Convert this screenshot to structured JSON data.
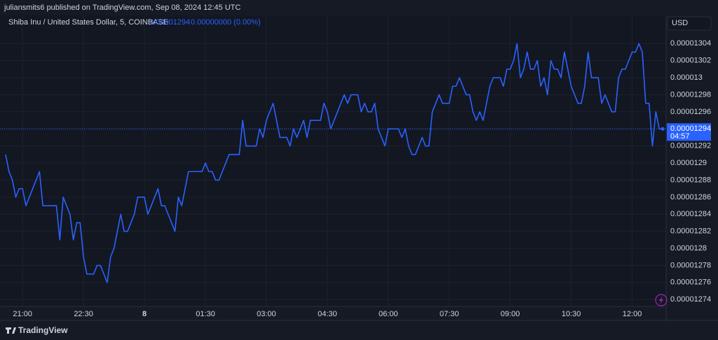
{
  "header": {
    "publisher": "juliansmits6 published on TradingView.com, Sep 08, 2024 12:45 UTC"
  },
  "legend": {
    "symbol": "Shiba Inu / United States Dollar, 5, COINBASE",
    "change": "0.00000000 (0.00%)"
  },
  "currency": "USD",
  "countdown": "04:57",
  "brand": "TradingView",
  "chart_data": {
    "type": "line",
    "color": "#2962ff",
    "grid": true,
    "ylim": [
      1.2732e-05,
      1.3073e-05
    ],
    "yticks": [
      1.274e-05,
      1.276e-05,
      1.278e-05,
      1.28e-05,
      1.282e-05,
      1.284e-05,
      1.286e-05,
      1.288e-05,
      1.29e-05,
      1.292e-05,
      1.294e-05,
      1.296e-05,
      1.298e-05,
      1.3e-05,
      1.302e-05,
      1.304e-05
    ],
    "categories": [
      null,
      null,
      null,
      null,
      null,
      "21:00",
      null,
      null,
      null,
      null,
      null,
      null,
      null,
      null,
      null,
      null,
      null,
      null,
      null,
      null,
      null,
      null,
      null,
      "22:30",
      null,
      null,
      null,
      null,
      null,
      null,
      null,
      null,
      null,
      null,
      null,
      null,
      null,
      null,
      null,
      null,
      null,
      "8",
      null,
      null,
      null,
      null,
      null,
      null,
      null,
      null,
      null,
      null,
      null,
      null,
      null,
      null,
      null,
      null,
      null,
      "01:30",
      null,
      null,
      null,
      null,
      null,
      null,
      null,
      null,
      null,
      null,
      null,
      null,
      null,
      null,
      null,
      null,
      null,
      "03:00",
      null,
      null,
      null,
      null,
      null,
      null,
      null,
      null,
      null,
      null,
      null,
      null,
      null,
      null,
      null,
      null,
      null,
      "04:30",
      null,
      null,
      null,
      null,
      null,
      null,
      null,
      null,
      null,
      null,
      null,
      null,
      null,
      null,
      null,
      null,
      null,
      "06:00",
      null,
      null,
      null,
      null,
      null,
      null,
      null,
      null,
      null,
      null,
      null,
      null,
      null,
      null,
      null,
      null,
      null,
      "07:30",
      null,
      null,
      null,
      null,
      null,
      null,
      null,
      null,
      null,
      null,
      null,
      null,
      null,
      null,
      null,
      null,
      null,
      "09:00",
      null,
      null,
      null,
      null,
      null,
      null,
      null,
      null,
      null,
      null,
      null,
      null,
      null,
      null,
      null,
      null,
      null,
      "10:30",
      null,
      null,
      null,
      null,
      null,
      null,
      null,
      null,
      null,
      null,
      null,
      null,
      null,
      null,
      null,
      null,
      null,
      "12:00",
      null,
      null,
      null,
      null,
      null,
      null,
      null,
      null,
      null
    ],
    "values": [
      1.291e-05,
      1.289e-05,
      1.288e-05,
      1.286e-05,
      1.287e-05,
      1.287e-05,
      1.285e-05,
      1.286e-05,
      1.287e-05,
      1.288e-05,
      1.289e-05,
      1.285e-05,
      1.285e-05,
      1.285e-05,
      1.285e-05,
      1.285e-05,
      1.281e-05,
      1.286e-05,
      1.285e-05,
      1.284e-05,
      1.281e-05,
      1.283e-05,
      1.283e-05,
      1.279e-05,
      1.277e-05,
      1.277e-05,
      1.277e-05,
      1.278e-05,
      1.278e-05,
      1.277e-05,
      1.276e-05,
      1.279e-05,
      1.28e-05,
      1.282e-05,
      1.284e-05,
      1.282e-05,
      1.282e-05,
      1.283e-05,
      1.284e-05,
      1.286e-05,
      1.286e-05,
      1.286e-05,
      1.284e-05,
      1.285e-05,
      1.286e-05,
      1.287e-05,
      1.285e-05,
      1.285e-05,
      1.284e-05,
      1.283e-05,
      1.282e-05,
      1.286e-05,
      1.285e-05,
      1.287e-05,
      1.289e-05,
      1.289e-05,
      1.289e-05,
      1.289e-05,
      1.289e-05,
      1.29e-05,
      1.289e-05,
      1.289e-05,
      1.288e-05,
      1.288e-05,
      1.289e-05,
      1.29e-05,
      1.291e-05,
      1.291e-05,
      1.291e-05,
      1.291e-05,
      1.295e-05,
      1.292e-05,
      1.292e-05,
      1.292e-05,
      1.292e-05,
      1.294e-05,
      1.293e-05,
      1.295e-05,
      1.296e-05,
      1.297e-05,
      1.295e-05,
      1.293e-05,
      1.293e-05,
      1.293e-05,
      1.292e-05,
      1.294e-05,
      1.293e-05,
      1.294e-05,
      1.295e-05,
      1.293e-05,
      1.295e-05,
      1.295e-05,
      1.295e-05,
      1.295e-05,
      1.297e-05,
      1.296e-05,
      1.294e-05,
      1.295e-05,
      1.296e-05,
      1.297e-05,
      1.298e-05,
      1.297e-05,
      1.298e-05,
      1.298e-05,
      1.298e-05,
      1.296e-05,
      1.297e-05,
      1.296e-05,
      1.296e-05,
      1.297e-05,
      1.294e-05,
      1.293e-05,
      1.292e-05,
      1.294e-05,
      1.294e-05,
      1.294e-05,
      1.294e-05,
      1.293e-05,
      1.294e-05,
      1.292e-05,
      1.291e-05,
      1.291e-05,
      1.292e-05,
      1.293e-05,
      1.292e-05,
      1.292e-05,
      1.296e-05,
      1.297e-05,
      1.298e-05,
      1.297e-05,
      1.297e-05,
      1.297e-05,
      1.299e-05,
      1.299e-05,
      1.3e-05,
      1.299e-05,
      1.298e-05,
      1.298e-05,
      1.296e-05,
      1.295e-05,
      1.296e-05,
      1.295e-05,
      1.297e-05,
      1.299e-05,
      1.3e-05,
      1.3e-05,
      1.3e-05,
      1.299e-05,
      1.301e-05,
      1.301e-05,
      1.302e-05,
      1.304e-05,
      1.3e-05,
      1.301e-05,
      1.303e-05,
      1.301e-05,
      1.301e-05,
      1.302e-05,
      1.299e-05,
      1.3e-05,
      1.298e-05,
      1.302e-05,
      1.301e-05,
      1.301e-05,
      1.3e-05,
      1.303e-05,
      1.301e-05,
      1.299e-05,
      1.298e-05,
      1.297e-05,
      1.297e-05,
      1.299e-05,
      1.303e-05,
      1.3e-05,
      1.3e-05,
      1.3e-05,
      1.297e-05,
      1.298e-05,
      1.297e-05,
      1.296e-05,
      1.296e-05,
      1.3e-05,
      1.301e-05,
      1.301e-05,
      1.302e-05,
      1.303e-05,
      1.303e-05,
      1.304e-05,
      1.303e-05,
      1.297e-05,
      1.297e-05,
      1.292e-05,
      1.296e-05,
      1.294e-05,
      1.294e-05
    ]
  }
}
